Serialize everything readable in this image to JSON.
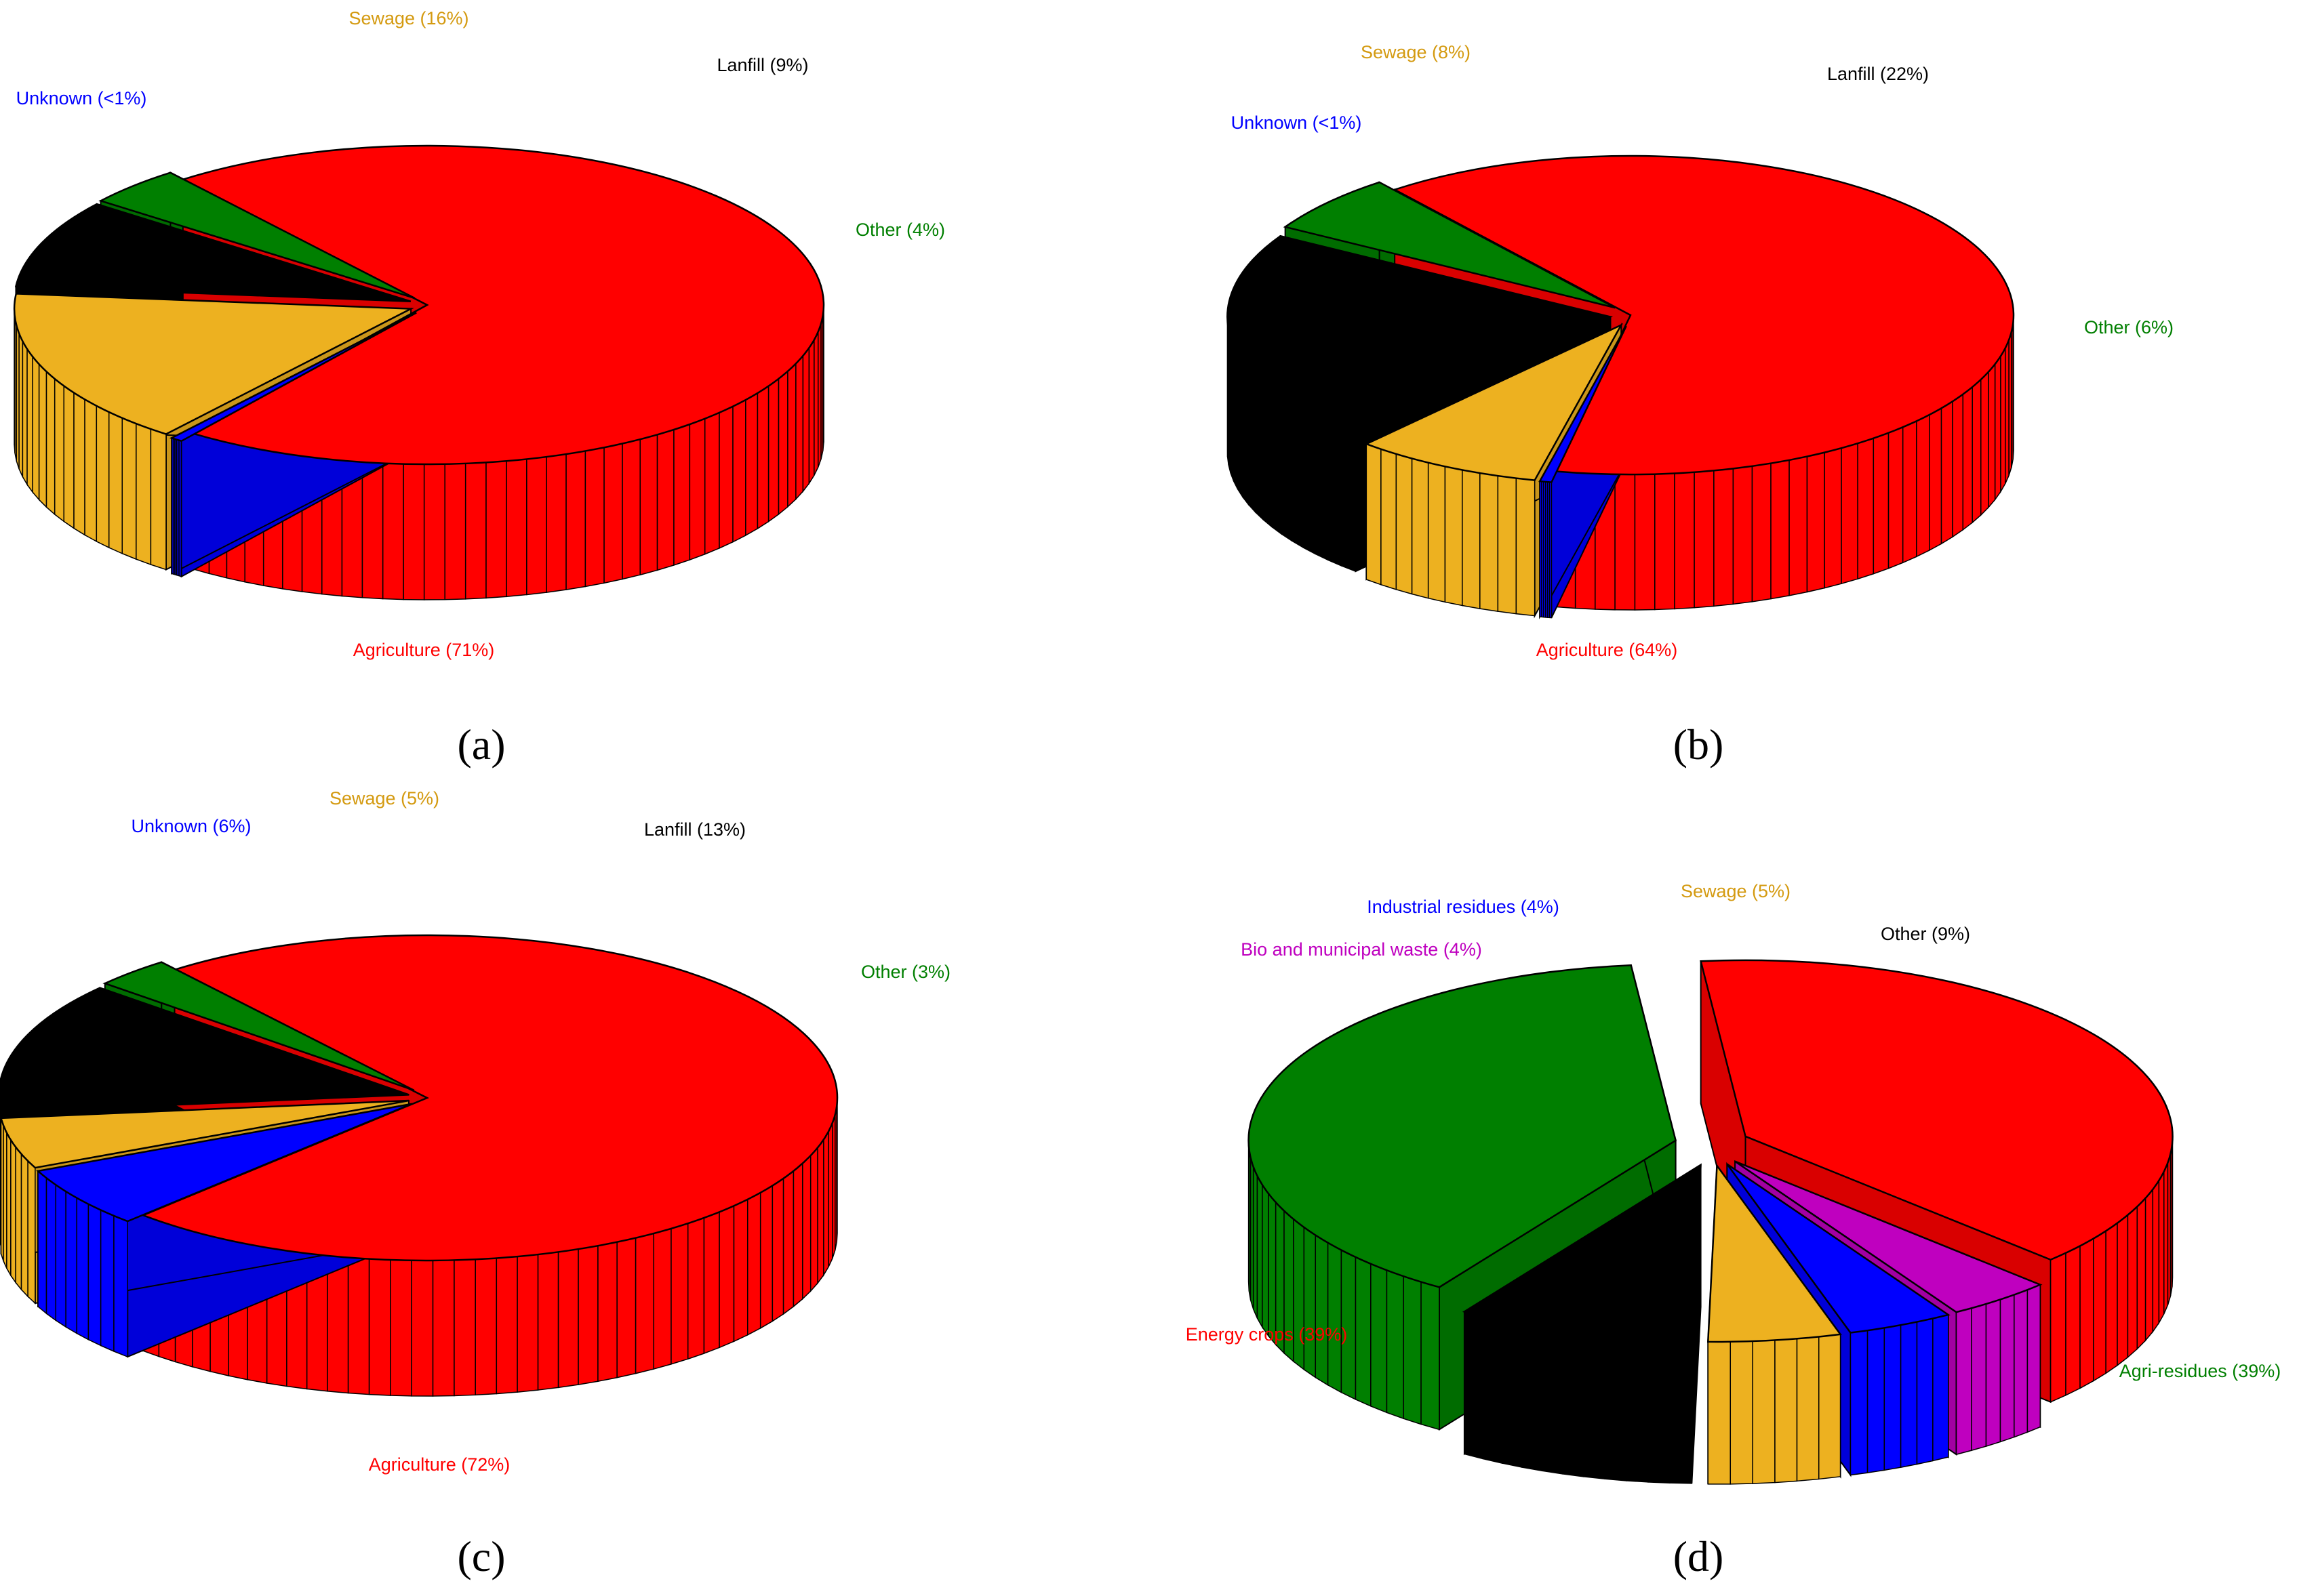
{
  "chart_data": [
    {
      "type": "pie",
      "panel": "(a)",
      "slices": [
        {
          "label": "Agriculture",
          "text": "Agriculture (71%)",
          "value": 71,
          "color": "#ff0000"
        },
        {
          "label": "Unknown",
          "text": "Unknown (<1%)",
          "value": 0.5,
          "color": "#0000ff"
        },
        {
          "label": "Sewage",
          "text": "Sewage (16%)",
          "value": 16,
          "color": "#edb120"
        },
        {
          "label": "Lanfill",
          "text": "Lanfill (9%)",
          "value": 9,
          "color": "#000000"
        },
        {
          "label": "Other",
          "text": "Other (4%)",
          "value": 4,
          "color": "#007f00"
        }
      ]
    },
    {
      "type": "pie",
      "panel": "(b)",
      "slices": [
        {
          "label": "Agriculture",
          "text": "Agriculture (64%)",
          "value": 64,
          "color": "#ff0000"
        },
        {
          "label": "Unknown",
          "text": "Unknown (<1%)",
          "value": 0.5,
          "color": "#0000ff"
        },
        {
          "label": "Sewage",
          "text": "Sewage (8%)",
          "value": 8,
          "color": "#edb120"
        },
        {
          "label": "Lanfill",
          "text": "Lanfill (22%)",
          "value": 22,
          "color": "#000000"
        },
        {
          "label": "Other",
          "text": "Other (6%)",
          "value": 6,
          "color": "#007f00"
        }
      ]
    },
    {
      "type": "pie",
      "panel": "(c)",
      "slices": [
        {
          "label": "Agriculture",
          "text": "Agriculture (72%)",
          "value": 72,
          "color": "#ff0000"
        },
        {
          "label": "Unknown",
          "text": "Unknown (6%)",
          "value": 6,
          "color": "#0000ff"
        },
        {
          "label": "Sewage",
          "text": "Sewage (5%)",
          "value": 5,
          "color": "#edb120"
        },
        {
          "label": "Lanfill",
          "text": "Lanfill (13%)",
          "value": 13,
          "color": "#000000"
        },
        {
          "label": "Other",
          "text": "Other (3%)",
          "value": 3,
          "color": "#007f00"
        }
      ]
    },
    {
      "type": "pie",
      "panel": "(d)",
      "slices": [
        {
          "label": "Energy crops",
          "text": "Energy crops (39%)",
          "value": 39,
          "color": "#ff0000"
        },
        {
          "label": "Bio and municipal waste",
          "text": "Bio and municipal waste (4%)",
          "value": 4,
          "color": "#bf00bf"
        },
        {
          "label": "Industrial residues",
          "text": "Industrial residues (4%)",
          "value": 4,
          "color": "#0000ff"
        },
        {
          "label": "Sewage",
          "text": "Sewage (5%)",
          "value": 5,
          "color": "#edb120"
        },
        {
          "label": "Other",
          "text": "Other (9%)",
          "value": 9,
          "color": "#000000"
        },
        {
          "label": "Agri-residues",
          "text": "Agri-residues (39%)",
          "value": 39,
          "color": "#007f00"
        }
      ]
    }
  ]
}
